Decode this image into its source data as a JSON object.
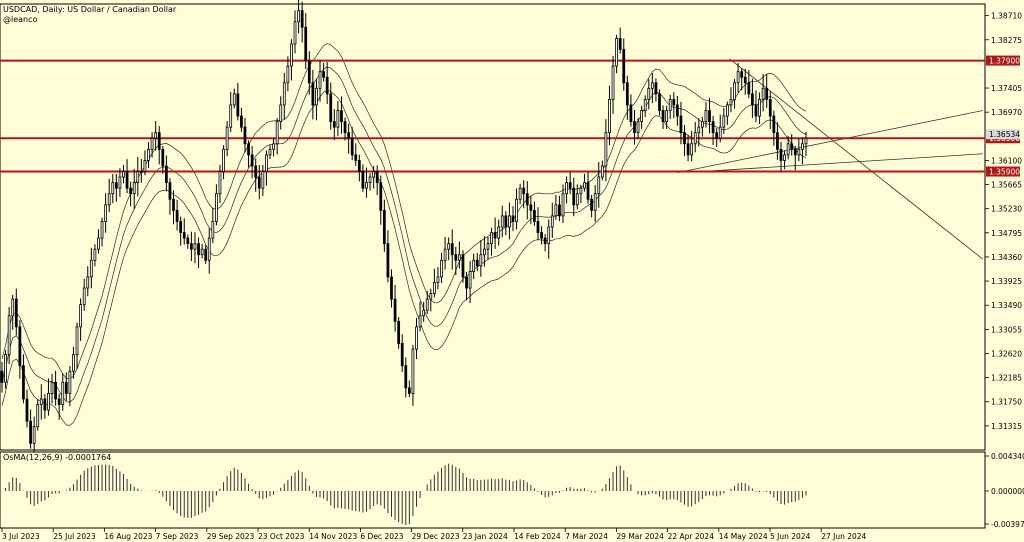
{
  "header": {
    "symbol_line": "USDCAD, Daily:  US Dollar / Canadian Dollar",
    "author": "@leanco"
  },
  "indicator": {
    "label": "OsMA(12,26,9) -0.0001764"
  },
  "colors": {
    "background": "#fffdd8",
    "candle": "#000000",
    "ma": "#2a2a2a",
    "level_line": "#b01818",
    "level_badge": "#b01818",
    "current_badge": "#d8d8d8",
    "trendline": "#333333"
  },
  "chart_data": [
    {
      "type": "candlestick",
      "title": "USDCAD, Daily",
      "ylim": [
        1.3088,
        1.3892
      ],
      "y_ticks": [
        "1.38710",
        "1.38275",
        "1.37405",
        "1.36970",
        "1.36100",
        "1.35665",
        "1.35230",
        "1.34795",
        "1.34360",
        "1.33925",
        "1.33490",
        "1.33055",
        "1.32620",
        "1.32185",
        "1.31750",
        "1.31315"
      ],
      "x_ticks": [
        "3 Jul 2023",
        "25 Jul 2023",
        "16 Aug 2023",
        "7 Sep 2023",
        "29 Sep 2023",
        "23 Oct 2023",
        "14 Nov 2023",
        "6 Dec 2023",
        "29 Dec 2023",
        "23 Jan 2024",
        "14 Feb 2024",
        "7 Mar 2024",
        "29 Mar 2024",
        "22 Apr 2024",
        "14 May 2024",
        "5 Jun 2024",
        "27 Jun 2024"
      ],
      "levels": [
        {
          "label": "1.37900",
          "value": 1.379
        },
        {
          "label": "1.36500",
          "value": 1.365
        },
        {
          "label": "1.35900",
          "value": 1.359
        }
      ],
      "current_price_label": "1.36534",
      "close_series": [
        1.321,
        1.326,
        1.333,
        1.336,
        1.331,
        1.324,
        1.318,
        1.314,
        1.31,
        1.313,
        1.317,
        1.318,
        1.316,
        1.319,
        1.321,
        1.318,
        1.317,
        1.321,
        1.319,
        1.323,
        1.326,
        1.331,
        1.335,
        1.338,
        1.34,
        1.343,
        1.345,
        1.347,
        1.35,
        1.353,
        1.355,
        1.357,
        1.356,
        1.358,
        1.359,
        1.356,
        1.355,
        1.357,
        1.359,
        1.359,
        1.361,
        1.363,
        1.365,
        1.366,
        1.363,
        1.36,
        1.357,
        1.354,
        1.352,
        1.35,
        1.348,
        1.347,
        1.346,
        1.345,
        1.346,
        1.344,
        1.345,
        1.343,
        1.347,
        1.35,
        1.355,
        1.359,
        1.363,
        1.367,
        1.371,
        1.373,
        1.369,
        1.367,
        1.364,
        1.362,
        1.36,
        1.358,
        1.356,
        1.359,
        1.362,
        1.363,
        1.364,
        1.368,
        1.371,
        1.375,
        1.378,
        1.382,
        1.386,
        1.388,
        1.385,
        1.379,
        1.375,
        1.371,
        1.374,
        1.377,
        1.376,
        1.373,
        1.368,
        1.367,
        1.37,
        1.368,
        1.366,
        1.365,
        1.362,
        1.361,
        1.359,
        1.356,
        1.357,
        1.358,
        1.359,
        1.357,
        1.352,
        1.346,
        1.34,
        1.336,
        1.332,
        1.328,
        1.324,
        1.32,
        1.319,
        1.327,
        1.331,
        1.333,
        1.334,
        1.336,
        1.337,
        1.339,
        1.34,
        1.343,
        1.345,
        1.346,
        1.344,
        1.343,
        1.344,
        1.34,
        1.338,
        1.341,
        1.343,
        1.342,
        1.344,
        1.345,
        1.346,
        1.348,
        1.347,
        1.349,
        1.351,
        1.349,
        1.351,
        1.35,
        1.354,
        1.356,
        1.355,
        1.353,
        1.352,
        1.35,
        1.348,
        1.347,
        1.346,
        1.349,
        1.351,
        1.353,
        1.351,
        1.355,
        1.357,
        1.356,
        1.353,
        1.355,
        1.356,
        1.357,
        1.354,
        1.352,
        1.355,
        1.358,
        1.36,
        1.366,
        1.372,
        1.378,
        1.383,
        1.381,
        1.375,
        1.371,
        1.368,
        1.366,
        1.368,
        1.37,
        1.372,
        1.374,
        1.375,
        1.373,
        1.37,
        1.368,
        1.37,
        1.372,
        1.371,
        1.369,
        1.366,
        1.364,
        1.362,
        1.364,
        1.366,
        1.367,
        1.368,
        1.37,
        1.368,
        1.366,
        1.365,
        1.367,
        1.369,
        1.371,
        1.372,
        1.375,
        1.377,
        1.376,
        1.375,
        1.373,
        1.371,
        1.369,
        1.372,
        1.374,
        1.372,
        1.369,
        1.366,
        1.363,
        1.361,
        1.362,
        1.364,
        1.363,
        1.362,
        1.363,
        1.364,
        1.365
      ]
    },
    {
      "type": "bar",
      "title": "OsMA(12,26,9)",
      "ylim": [
        -0.0039764,
        0.0043408
      ],
      "y_ticks": [
        "0.0043408",
        "0.0000000",
        "-0.0039764"
      ],
      "last_value": -0.0001764
    }
  ]
}
